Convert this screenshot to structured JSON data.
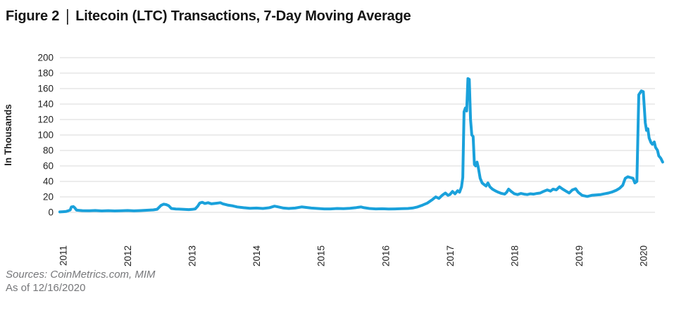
{
  "title": {
    "prefix": "Figure 2",
    "separator": "|",
    "text": "Litecoin (LTC) Transactions, 7-Day Moving Average"
  },
  "footer": {
    "sources": "Sources: CoinMetrics.com, MIM",
    "as_of": "As of 12/16/2020"
  },
  "colors": {
    "line": "#1aa1db",
    "grid": "#d9d9d9",
    "text": "#232323",
    "footer_text": "#76777a"
  },
  "chart_data": {
    "type": "line",
    "title": "Litecoin (LTC) Transactions, 7-Day Moving Average",
    "xlabel": "",
    "ylabel": "In Thousands",
    "ylim": [
      0,
      200
    ],
    "y_ticks": [
      0,
      20,
      40,
      60,
      80,
      100,
      120,
      140,
      160,
      180,
      200
    ],
    "x_ticks": [
      2011,
      2012,
      2013,
      2014,
      2015,
      2016,
      2017,
      2018,
      2019,
      2020
    ],
    "grid": "horizontal",
    "legend": "none",
    "line_color": "#1aa1db",
    "series": [
      {
        "name": "LTC transactions, 7-day moving average (thousands)",
        "color": "#1aa1db",
        "x": [
          2010.95,
          2011.0,
          2011.05,
          2011.08,
          2011.11,
          2011.13,
          2011.16,
          2011.18,
          2011.21,
          2011.3,
          2011.4,
          2011.5,
          2011.6,
          2011.7,
          2011.8,
          2011.9,
          2012.0,
          2012.1,
          2012.2,
          2012.3,
          2012.4,
          2012.46,
          2012.52,
          2012.56,
          2012.6,
          2012.64,
          2012.68,
          2012.75,
          2012.85,
          2012.95,
          2013.0,
          2013.05,
          2013.09,
          2013.12,
          2013.16,
          2013.2,
          2013.25,
          2013.3,
          2013.35,
          2013.4,
          2013.44,
          2013.48,
          2013.55,
          2013.62,
          2013.7,
          2013.8,
          2013.9,
          2014.0,
          2014.1,
          2014.2,
          2014.28,
          2014.34,
          2014.42,
          2014.5,
          2014.6,
          2014.7,
          2014.76,
          2014.85,
          2014.95,
          2015.05,
          2015.15,
          2015.25,
          2015.35,
          2015.45,
          2015.55,
          2015.62,
          2015.67,
          2015.75,
          2015.85,
          2015.95,
          2016.05,
          2016.15,
          2016.25,
          2016.35,
          2016.42,
          2016.5,
          2016.58,
          2016.65,
          2016.72,
          2016.78,
          2016.83,
          2016.88,
          2016.93,
          2016.97,
          2017.0,
          2017.04,
          2017.08,
          2017.12,
          2017.15,
          2017.18,
          2017.2,
          2017.22,
          2017.24,
          2017.26,
          2017.28,
          2017.3,
          2017.32,
          2017.34,
          2017.36,
          2017.38,
          2017.4,
          2017.42,
          2017.44,
          2017.47,
          2017.5,
          2017.53,
          2017.56,
          2017.59,
          2017.62,
          2017.66,
          2017.7,
          2017.75,
          2017.8,
          2017.85,
          2017.88,
          2017.91,
          2017.95,
          2018.0,
          2018.05,
          2018.1,
          2018.15,
          2018.2,
          2018.25,
          2018.3,
          2018.35,
          2018.4,
          2018.45,
          2018.51,
          2018.56,
          2018.6,
          2018.65,
          2018.7,
          2018.75,
          2018.8,
          2018.85,
          2018.9,
          2018.95,
          2018.99,
          2019.05,
          2019.13,
          2019.2,
          2019.27,
          2019.34,
          2019.4,
          2019.46,
          2019.52,
          2019.58,
          2019.63,
          2019.68,
          2019.72,
          2019.76,
          2019.8,
          2019.84,
          2019.87,
          2019.9,
          2019.93,
          2019.97,
          2020.0,
          2020.03,
          2020.05,
          2020.07,
          2020.09,
          2020.12,
          2020.14,
          2020.17,
          2020.19,
          2020.22,
          2020.24,
          2020.27,
          2020.3
        ],
        "y": [
          0.5,
          0.8,
          1.2,
          2,
          3,
          7,
          7.5,
          6,
          2.8,
          2.2,
          2,
          2.4,
          1.8,
          2.2,
          1.8,
          2,
          2.4,
          1.9,
          2.3,
          2.7,
          3.2,
          4,
          9,
          10.5,
          10,
          8.5,
          5,
          4.4,
          4,
          3.5,
          3.8,
          4.5,
          8,
          12,
          13,
          11.5,
          12.5,
          11,
          11.5,
          12,
          12.5,
          11,
          9.5,
          8.5,
          7,
          6,
          5.2,
          5.5,
          5,
          6,
          8,
          7,
          5.5,
          5,
          5.5,
          7,
          6.5,
          5.5,
          5,
          4.5,
          4.5,
          5,
          4.8,
          5.3,
          6.2,
          7,
          6,
          5,
          4.5,
          4.6,
          4.4,
          4.5,
          4.7,
          5,
          5.5,
          7,
          9.5,
          12,
          16,
          20,
          18,
          22,
          25,
          22,
          23,
          27,
          24,
          28,
          26,
          33,
          45,
          130,
          135,
          131,
          173,
          172,
          120,
          100,
          98,
          62,
          60,
          65,
          58,
          44,
          38,
          36,
          34,
          38,
          33,
          30,
          28,
          26,
          24.5,
          23.5,
          26,
          30,
          27,
          24,
          23,
          24.5,
          23.5,
          23,
          24,
          23.5,
          24.5,
          25,
          27,
          29,
          27.5,
          30,
          29,
          33,
          30,
          27.5,
          25,
          29,
          30.5,
          26,
          22,
          20.5,
          22,
          22.5,
          23,
          24,
          25,
          26.5,
          28.5,
          31,
          35,
          44,
          46,
          45,
          44,
          38,
          40,
          152,
          157,
          156,
          116,
          106,
          108,
          96,
          90,
          88,
          91,
          84,
          80,
          73,
          70,
          65
        ]
      }
    ]
  }
}
